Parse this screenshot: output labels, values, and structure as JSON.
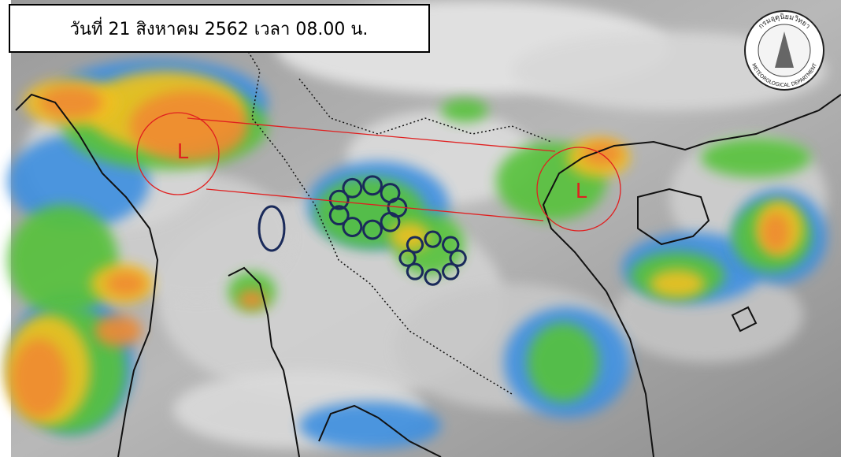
{
  "header": {
    "title": "วันที่ 21 สิงหาคม 2562 เวลา 08.00 น."
  },
  "lows": [
    {
      "label": "L"
    },
    {
      "label": "L"
    }
  ],
  "logo": {
    "text_top": "กรมอุตุนิยมวิทยา",
    "text_bottom": "METEOROLOGICAL DEPARTMENT"
  }
}
